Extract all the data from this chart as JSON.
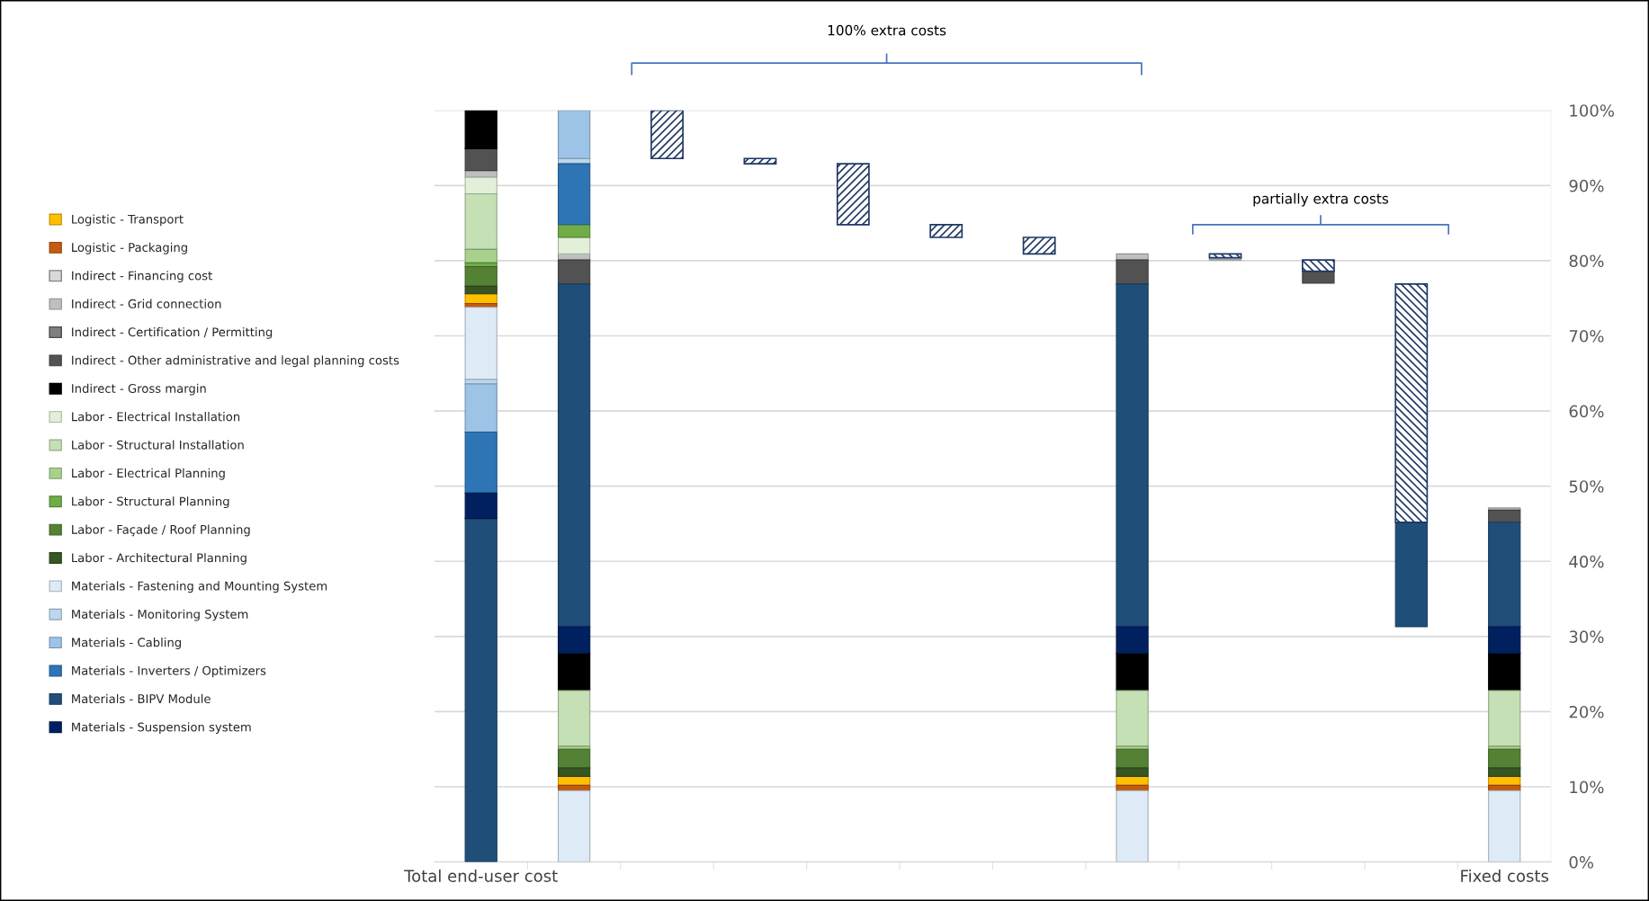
{
  "chart_data": {
    "type": "bar",
    "categories": [
      "Total end-user cost",
      null,
      null,
      null,
      null,
      null,
      null,
      null,
      null,
      null,
      null,
      "Fixed costs"
    ],
    "ylim": [
      0,
      100
    ],
    "yticks": [
      {
        "value": 0,
        "label": "0%"
      },
      {
        "value": 10,
        "label": "10%"
      },
      {
        "value": 20,
        "label": "20%"
      },
      {
        "value": 30,
        "label": "30%"
      },
      {
        "value": 40,
        "label": "40%"
      },
      {
        "value": 50,
        "label": "50%"
      },
      {
        "value": 60,
        "label": "60%"
      },
      {
        "value": 70,
        "label": "70%"
      },
      {
        "value": 80,
        "label": "80%"
      },
      {
        "value": 90,
        "label": "90%"
      },
      {
        "value": 100,
        "label": "100%"
      }
    ],
    "grid": "y",
    "legend": "left",
    "annotations": [
      "100% extra costs",
      "partially extra costs"
    ],
    "series": [
      {
        "name": "Logistic - Transport",
        "color": "#ffc000",
        "base": [
          74.3,
          10.2,
          null,
          null,
          null,
          null,
          null,
          10.2,
          null,
          null,
          null,
          10.2
        ],
        "values": [
          1.3,
          1.2,
          null,
          null,
          null,
          null,
          null,
          1.2,
          null,
          null,
          null,
          1.2
        ]
      },
      {
        "name": "Logistic - Packaging",
        "color": "#c55a11",
        "base": [
          73.8,
          9.5,
          null,
          null,
          null,
          null,
          null,
          9.5,
          null,
          null,
          null,
          9.5
        ],
        "values": [
          0.5,
          0.7,
          null,
          null,
          null,
          null,
          null,
          0.7,
          null,
          null,
          null,
          0.7
        ]
      },
      {
        "name": "Indirect - Financing cost",
        "color": "#d9d9d9",
        "base": [
          null,
          null,
          null,
          null,
          null,
          null,
          null,
          null,
          null,
          null,
          null,
          null
        ],
        "values": [
          null,
          null,
          null,
          null,
          null,
          null,
          null,
          null,
          null,
          null,
          null,
          null
        ]
      },
      {
        "name": "Indirect - Grid connection",
        "color": "#bfbfbf",
        "base": [
          91.1,
          80.1,
          null,
          null,
          null,
          null,
          null,
          80.1,
          80.1,
          null,
          null,
          46.8
        ],
        "values": [
          0.9,
          0.8,
          null,
          null,
          null,
          null,
          null,
          0.8,
          0.3,
          null,
          null,
          0.3
        ]
      },
      {
        "name": "Indirect - Certification / Permitting",
        "color": "#7f7f7f",
        "base": [
          null,
          null,
          null,
          null,
          null,
          null,
          null,
          null,
          null,
          null,
          null,
          null
        ],
        "values": [
          null,
          null,
          null,
          null,
          null,
          null,
          null,
          null,
          null,
          null,
          null,
          null
        ]
      },
      {
        "name": "Indirect - Other administrative and legal planning costs",
        "color": "#525252",
        "base": [
          92.0,
          76.9,
          null,
          null,
          null,
          null,
          null,
          76.9,
          null,
          77.0,
          null,
          45.2
        ],
        "values": [
          2.9,
          3.2,
          null,
          null,
          null,
          null,
          null,
          3.2,
          null,
          1.6,
          null,
          1.6
        ]
      },
      {
        "name": "Indirect - Gross margin",
        "color": "#000000",
        "base": [
          94.9,
          22.8,
          null,
          null,
          null,
          null,
          null,
          22.8,
          null,
          null,
          null,
          22.8
        ],
        "values": [
          5.1,
          5.0,
          null,
          null,
          null,
          null,
          null,
          5.0,
          null,
          null,
          null,
          5.0
        ]
      },
      {
        "name": "Labor - Electrical Installation",
        "color": "#e2f0d9",
        "base": [
          88.9,
          80.9,
          null,
          null,
          null,
          null,
          null,
          null,
          null,
          null,
          null,
          null
        ],
        "values": [
          2.2,
          2.2,
          null,
          null,
          null,
          null,
          null,
          null,
          null,
          null,
          null,
          null
        ]
      },
      {
        "name": "Labor - Structural Installation",
        "color": "#c5e0b4",
        "base": [
          81.5,
          15.4,
          null,
          null,
          null,
          null,
          null,
          15.4,
          null,
          null,
          null,
          15.4
        ],
        "values": [
          7.4,
          7.4,
          null,
          null,
          null,
          null,
          null,
          7.4,
          null,
          null,
          null,
          7.4
        ]
      },
      {
        "name": "Labor - Electrical Planning",
        "color": "#a9d18e",
        "base": [
          79.7,
          15.0,
          null,
          null,
          null,
          null,
          null,
          15.0,
          null,
          null,
          null,
          15.0
        ],
        "values": [
          1.8,
          0.4,
          null,
          null,
          null,
          null,
          null,
          0.4,
          null,
          null,
          null,
          0.4
        ]
      },
      {
        "name": "Labor - Structural Planning",
        "color": "#70ad47",
        "base": [
          79.2,
          83.1,
          null,
          null,
          null,
          null,
          null,
          null,
          null,
          null,
          null,
          null
        ],
        "values": [
          0.5,
          1.7,
          null,
          null,
          null,
          null,
          null,
          null,
          null,
          null,
          null,
          null
        ]
      },
      {
        "name": "Labor - Façade / Roof Planning",
        "color": "#548235",
        "base": [
          76.6,
          12.5,
          null,
          null,
          null,
          null,
          null,
          12.5,
          null,
          null,
          null,
          12.5
        ],
        "values": [
          2.6,
          2.5,
          null,
          null,
          null,
          null,
          null,
          2.5,
          null,
          null,
          null,
          2.5
        ]
      },
      {
        "name": "Labor - Architectural Planning",
        "color": "#375623",
        "base": [
          75.6,
          11.4,
          null,
          null,
          null,
          null,
          null,
          11.4,
          null,
          null,
          null,
          11.4
        ],
        "values": [
          1.0,
          1.1,
          null,
          null,
          null,
          null,
          null,
          1.1,
          null,
          null,
          null,
          1.1
        ]
      },
      {
        "name": "Materials - Fastening and Mounting System",
        "color": "#deebf7",
        "base": [
          64.2,
          0,
          null,
          null,
          null,
          null,
          null,
          0,
          null,
          null,
          null,
          0
        ],
        "values": [
          9.6,
          9.5,
          null,
          null,
          null,
          null,
          null,
          9.5,
          null,
          null,
          null,
          9.5
        ]
      },
      {
        "name": "Materials - Monitoring System",
        "color": "#bdd7ee",
        "base": [
          63.6,
          92.9,
          null,
          null,
          null,
          null,
          null,
          null,
          null,
          null,
          null,
          null
        ],
        "values": [
          0.6,
          0.7,
          null,
          null,
          null,
          null,
          null,
          null,
          null,
          null,
          null,
          null
        ]
      },
      {
        "name": "Materials - Cabling",
        "color": "#9dc3e6",
        "base": [
          57.2,
          93.6,
          null,
          null,
          null,
          null,
          null,
          null,
          null,
          null,
          null,
          null
        ],
        "values": [
          6.4,
          6.4,
          null,
          null,
          null,
          null,
          null,
          null,
          null,
          null,
          null,
          null
        ]
      },
      {
        "name": "Materials - Inverters / Optimizers",
        "color": "#2e75b6",
        "base": [
          49.1,
          84.8,
          null,
          null,
          null,
          null,
          null,
          null,
          null,
          null,
          null,
          null
        ],
        "values": [
          8.1,
          8.1,
          null,
          null,
          null,
          null,
          null,
          null,
          null,
          null,
          null,
          null
        ]
      },
      {
        "name": "Materials - BIPV Module",
        "color": "#1f4e79",
        "base": [
          0,
          31.3,
          null,
          null,
          null,
          null,
          null,
          31.3,
          null,
          null,
          31.3,
          31.3
        ],
        "values": [
          45.7,
          45.6,
          null,
          null,
          null,
          null,
          null,
          45.6,
          null,
          null,
          13.9,
          13.9
        ]
      },
      {
        "name": "Materials - Suspension system",
        "color": "#002060",
        "base": [
          45.7,
          27.8,
          null,
          null,
          null,
          null,
          null,
          27.8,
          null,
          null,
          null,
          27.8
        ],
        "values": [
          3.4,
          3.5,
          null,
          null,
          null,
          null,
          null,
          3.5,
          null,
          null,
          null,
          3.5
        ]
      },
      {
        "color": "#1f3864",
        "base": [
          null,
          null,
          93.6,
          92.9,
          84.8,
          83.1,
          80.9,
          null,
          null,
          null,
          null,
          null
        ],
        "values": [
          null,
          null,
          6.4,
          0.7,
          8.1,
          1.7,
          2.2,
          null,
          null,
          null,
          null,
          null
        ]
      },
      {
        "color": "#1f3864",
        "base": [
          null,
          null,
          null,
          null,
          null,
          null,
          null,
          null,
          80.4,
          78.6,
          45.2,
          null
        ],
        "values": [
          null,
          null,
          null,
          null,
          null,
          null,
          null,
          null,
          0.5,
          1.5,
          31.7,
          null
        ]
      }
    ]
  }
}
